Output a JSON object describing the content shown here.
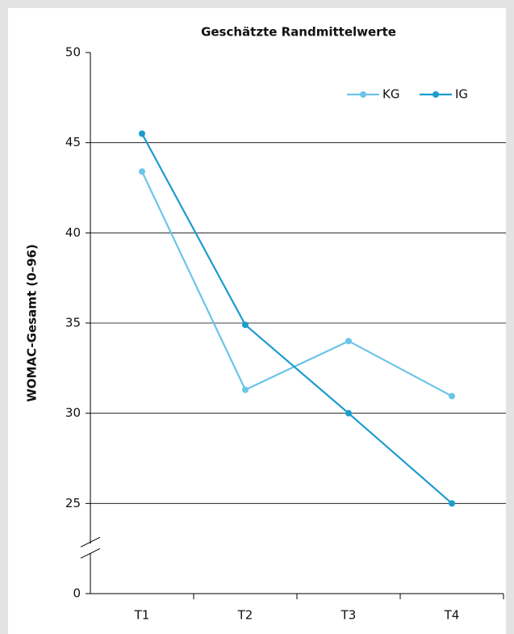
{
  "chart_data": {
    "type": "line",
    "title": "Geschätzte Randmittelwerte",
    "y_label": "WOMAC-Gesamt (0–96)",
    "categories": [
      "T1",
      "T2",
      "T3",
      "T4"
    ],
    "series": [
      {
        "name": "KG",
        "color": "#6cc4e8",
        "values": [
          43.4,
          31.3,
          34.0,
          30.95
        ]
      },
      {
        "name": "IG",
        "color": "#1a9ccd",
        "values": [
          45.5,
          34.9,
          30.0,
          25.0
        ]
      }
    ],
    "ylim": [
      0,
      50
    ],
    "yticks": [
      0,
      25,
      30,
      35,
      40,
      45,
      50
    ],
    "axis_break": true,
    "grid": true,
    "legend": "top-right"
  }
}
